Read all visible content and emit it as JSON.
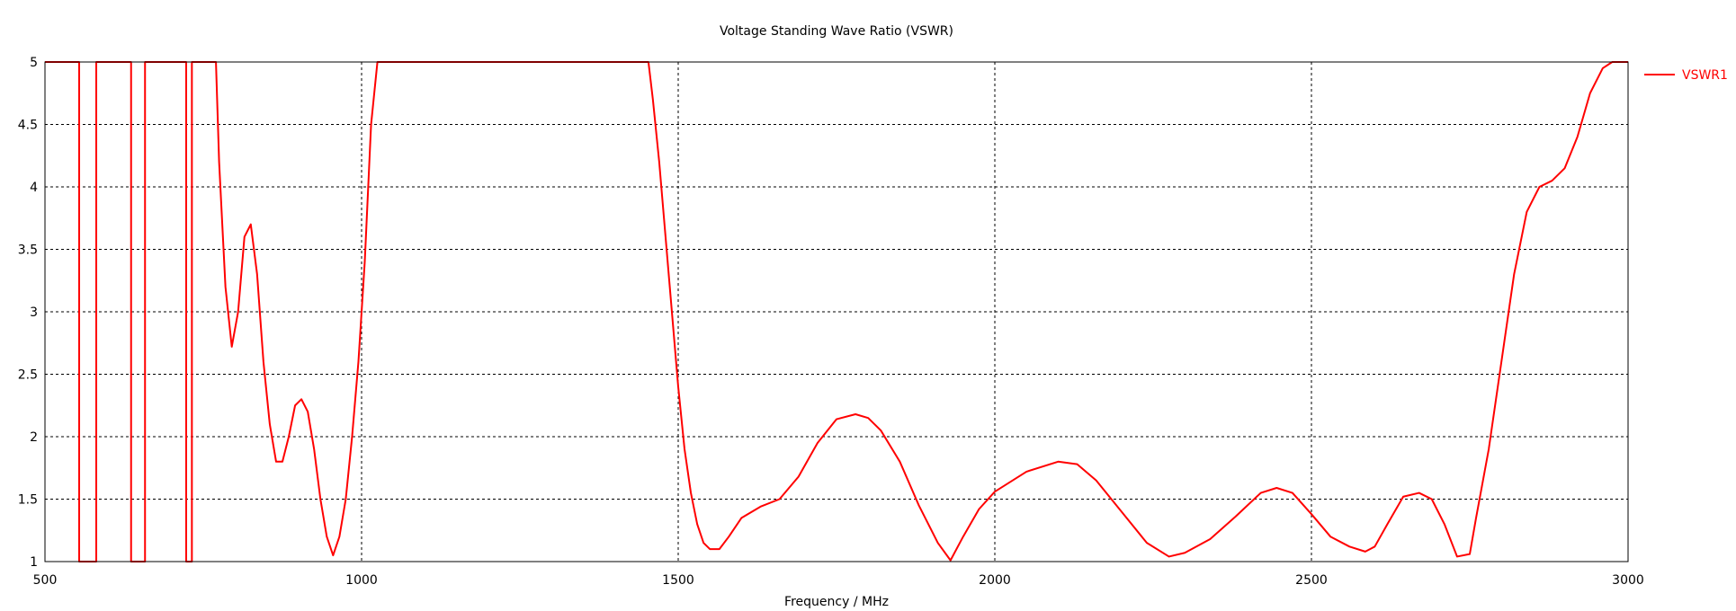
{
  "chart_data": {
    "type": "line",
    "title": "Voltage Standing Wave Ratio (VSWR)",
    "xlabel": "Frequency / MHz",
    "ylabel": "",
    "xlim": [
      500,
      3000
    ],
    "ylim": [
      1,
      5
    ],
    "xticks": [
      500,
      1000,
      1500,
      2000,
      2500,
      3000
    ],
    "yticks": [
      1,
      1.5,
      2,
      2.5,
      3,
      3.5,
      4,
      4.5,
      5
    ],
    "ytick_labels": [
      "1",
      "1.5",
      "2",
      "2.5",
      "3",
      "3.5",
      "4",
      "4.5",
      "5"
    ],
    "grid": true,
    "legend_position": "top-right-outside",
    "colors": {
      "series": "#ff0000",
      "grid": "#000000",
      "axes": "#000000"
    },
    "series": [
      {
        "name": "VSWR1",
        "color": "#ff0000",
        "x": [
          500,
          500,
          554,
          554,
          581,
          581,
          636,
          636,
          658,
          658,
          723,
          723,
          732,
          732,
          770,
          775,
          785,
          795,
          805,
          815,
          825,
          835,
          845,
          855,
          865,
          875,
          885,
          895,
          905,
          915,
          925,
          935,
          945,
          955,
          965,
          975,
          985,
          995,
          1005,
          1015,
          1025,
          1028,
          1453,
          1460,
          1470,
          1480,
          1490,
          1500,
          1510,
          1520,
          1530,
          1540,
          1550,
          1565,
          1580,
          1600,
          1630,
          1660,
          1690,
          1720,
          1750,
          1780,
          1800,
          1820,
          1850,
          1880,
          1910,
          1930,
          1950,
          1975,
          2000,
          2050,
          2100,
          2130,
          2160,
          2200,
          2240,
          2275,
          2300,
          2340,
          2380,
          2420,
          2445,
          2470,
          2500,
          2530,
          2560,
          2585,
          2600,
          2620,
          2645,
          2670,
          2690,
          2710,
          2730,
          2750,
          2760,
          2780,
          2800,
          2820,
          2840,
          2860,
          2880,
          2900,
          2920,
          2940,
          2960,
          2975,
          2990,
          3000
        ],
        "values": [
          5,
          5,
          5,
          1,
          1,
          5,
          5,
          1,
          1,
          5,
          5,
          1,
          1,
          5,
          5,
          4.2,
          3.2,
          2.72,
          3.0,
          3.6,
          3.7,
          3.3,
          2.6,
          2.1,
          1.8,
          1.8,
          2.0,
          2.25,
          2.3,
          2.2,
          1.9,
          1.5,
          1.2,
          1.05,
          1.2,
          1.5,
          2.0,
          2.6,
          3.4,
          4.5,
          5.0,
          5.0,
          5.0,
          4.7,
          4.2,
          3.6,
          3.0,
          2.4,
          1.9,
          1.55,
          1.3,
          1.15,
          1.1,
          1.1,
          1.2,
          1.35,
          1.44,
          1.5,
          1.68,
          1.95,
          2.14,
          2.18,
          2.15,
          2.05,
          1.8,
          1.45,
          1.15,
          1.01,
          1.2,
          1.42,
          1.56,
          1.72,
          1.8,
          1.78,
          1.65,
          1.4,
          1.15,
          1.04,
          1.07,
          1.18,
          1.36,
          1.55,
          1.59,
          1.55,
          1.38,
          1.2,
          1.12,
          1.08,
          1.12,
          1.3,
          1.52,
          1.55,
          1.5,
          1.3,
          1.04,
          1.06,
          1.35,
          1.9,
          2.6,
          3.3,
          3.8,
          4.0,
          4.05,
          4.15,
          4.4,
          4.75,
          4.95,
          5.0,
          5.0,
          5.0
        ]
      }
    ]
  }
}
